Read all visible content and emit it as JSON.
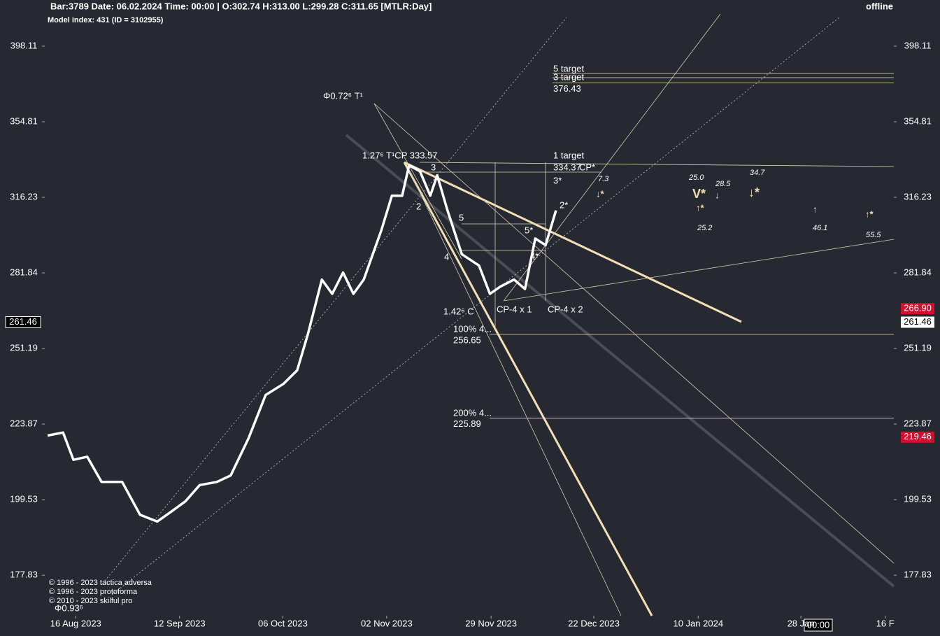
{
  "header": {
    "info": "Bar:3789 Date: 06.02.2024 Time: 00:00 | O:302.74 H:313.00 L:299.28 C:311.65 [MTLR:Day]",
    "model": "Model index: 431  (ID = 3102955)",
    "status": "offline",
    "cursor_time": "00:00"
  },
  "copyright": [
    "© 1996 - 2023 tactica adversa",
    "© 1996 - 2023 protoforma",
    "© 2010 - 2023 skilful pro"
  ],
  "chart_data": {
    "type": "line",
    "log_scale": true,
    "color": "#ffffff",
    "x": [
      0.5,
      3.2,
      5,
      7.4,
      9.9,
      13.5,
      16.6,
      19.6,
      22.1,
      24.5,
      27,
      30,
      32.4,
      35.5,
      38.5,
      41.6,
      44,
      45.9,
      48.3,
      50.1,
      52,
      53.8,
      55.6,
      58.7,
      60.5,
      62.3,
      63.5,
      65.4,
      67.2,
      68.4,
      70.2,
      72.7,
      75.7,
      77.6,
      79.4,
      81.8,
      83.7,
      85.5,
      87.3,
      89.1
    ],
    "values": [
      220,
      221,
      212,
      213,
      205,
      205,
      195,
      193,
      196,
      199,
      204,
      205,
      207,
      219,
      234,
      238,
      243,
      257,
      279,
      273,
      282,
      273,
      279,
      301,
      317,
      317,
      332,
      329,
      317,
      327,
      310,
      290,
      285,
      273,
      276,
      279,
      275,
      297,
      294,
      310
    ],
    "xlim": [
      0,
      148
    ],
    "xticks": [
      {
        "value": 5.4,
        "label": "16 Aug 2023"
      },
      {
        "value": 23.5,
        "label": "12 Sep 2023"
      },
      {
        "value": 41.5,
        "label": "06 Oct 2023"
      },
      {
        "value": 59.6,
        "label": "02 Nov 2023"
      },
      {
        "value": 77.8,
        "label": "29 Nov 2023"
      },
      {
        "value": 95.7,
        "label": "22 Dec 2023"
      },
      {
        "value": 113.9,
        "label": "10 Jan 2024"
      },
      {
        "value": 131.8,
        "label": "28 Jan"
      },
      {
        "value": 146.5,
        "label": "16 F"
      }
    ],
    "ylim": [
      167.2,
      418.1
    ],
    "yticks": [
      398.11,
      354.81,
      316.23,
      281.84,
      251.19,
      223.87,
      199.53,
      177.83
    ],
    "levels": [
      376.43,
      256.65,
      225.89
    ],
    "price_tags": [
      {
        "value": 266.9,
        "label": "266.90",
        "color": "#d0102c"
      },
      {
        "value": 261.46,
        "color": "#ffffff"
      },
      {
        "value": 219.46,
        "color": "#d0102c"
      }
    ],
    "annotations": [
      "Φ0.72⁶ T¹",
      "1.27⁶ T¹CP  333.57",
      "5 target",
      "3 target",
      "1 target",
      "334.37",
      "CP*",
      "3*",
      "7.3",
      "↓*",
      "2*",
      "5*",
      "4*",
      "5",
      "4",
      "3",
      "2",
      "1.42⁶ C",
      "CP-4 x 1",
      "CP-4 x 2",
      "100%  4...",
      "200%  4...",
      "25.0",
      "28.5",
      "34.7",
      "V*",
      "↑*",
      "↓",
      "↓*",
      "25.2",
      "↑",
      "46.1",
      "↑*",
      "55.5",
      "Φ0.93⁶"
    ]
  }
}
